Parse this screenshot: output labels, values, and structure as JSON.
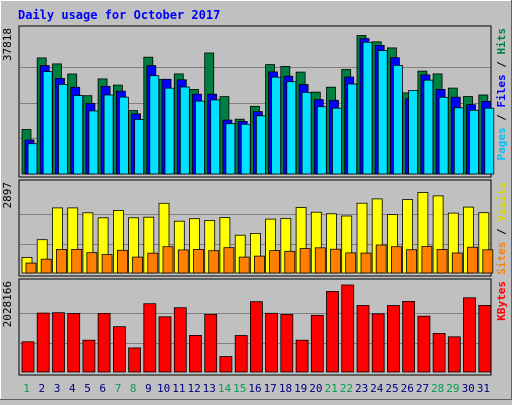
{
  "chart_data": {
    "type": "bar",
    "title": "Daily usage for October 2017",
    "categories": [
      "1",
      "2",
      "3",
      "4",
      "5",
      "6",
      "7",
      "8",
      "9",
      "10",
      "11",
      "12",
      "13",
      "14",
      "15",
      "16",
      "17",
      "18",
      "19",
      "20",
      "21",
      "22",
      "23",
      "24",
      "25",
      "26",
      "27",
      "28",
      "29",
      "30",
      "31"
    ],
    "weekend_days": [
      "1",
      "7",
      "8",
      "14",
      "15",
      "21",
      "22",
      "28",
      "29"
    ],
    "panels": [
      {
        "id": "hits",
        "ymax_label": "37818",
        "ymax": 37818,
        "labels": [
          "Pages",
          "Files",
          "Hits"
        ],
        "series": [
          {
            "name": "Hits",
            "color": "#008040",
            "values": [
              11760,
              30708,
              29120,
              26440,
              20720,
              25160,
              23520,
              16780,
              30900,
              25000,
              26460,
              22380,
              32000,
              20460,
              14500,
              17900,
              28940,
              28460,
              26940,
              21660,
              22960,
              27640,
              36620,
              34960,
              33340,
              21460,
              27200,
              26460,
              22720,
              20500,
              20900
            ]
          },
          {
            "name": "Files",
            "color": "#0000ff",
            "values": [
              9000,
              28680,
              25280,
              22920,
              18680,
              23160,
              21900,
              15900,
              28680,
              25040,
              24900,
              21100,
              21100,
              14250,
              13900,
              16500,
              27000,
              25860,
              23680,
              19680,
              19500,
              25660,
              35800,
              34000,
              30760,
              19900,
              26200,
              22380,
              20300,
              18340,
              19200
            ]
          },
          {
            "name": "Pages",
            "color": "#00e0ff",
            "values": [
              8000,
              27080,
              23700,
              20760,
              16700,
              20900,
              20340,
              14450,
              26000,
              22680,
              23000,
              19280,
              19600,
              13300,
              13140,
              15400,
              25600,
              24400,
              21580,
              17800,
              17400,
              23800,
              34840,
              32640,
              28720,
              22120,
              24800,
              20280,
              17500,
              16840,
              17400
            ]
          }
        ]
      },
      {
        "id": "visits",
        "ymax_label": "2897",
        "ymax": 2897,
        "labels": [
          "Sites",
          "Visits"
        ],
        "series": [
          {
            "name": "Visits",
            "color": "#ffff00",
            "values": [
              509,
              1096,
              2142,
              2142,
              1983,
              1816,
              2062,
              1816,
              1836,
              2294,
              1706,
              1786,
              1733,
              1823,
              1246,
              1304,
              1776,
              1794,
              2159,
              2003,
              1948,
              1876,
              2297,
              2438,
              1925,
              2418,
              2650,
              2539,
              1971,
              2170,
              1986
            ]
          },
          {
            "name": "Sites",
            "color": "#ff8000",
            "values": [
              325,
              454,
              776,
              776,
              667,
              607,
              747,
              523,
              652,
              867,
              760,
              778,
              734,
              833,
              524,
              557,
              739,
              713,
              802,
              831,
              783,
              661,
              656,
              921,
              865,
              768,
              872,
              778,
              660,
              850,
              763
            ]
          }
        ]
      },
      {
        "id": "kbytes",
        "ymax_label": "2028166",
        "ymax": 2028166,
        "labels": [
          "KBytes"
        ],
        "series": [
          {
            "name": "KBytes",
            "color": "#ff0000",
            "values": [
              695000,
              1358000,
              1366000,
              1349000,
              734000,
              1350000,
              1043000,
              556000,
              1573000,
              1272000,
              1483000,
              844000,
              1327000,
              354000,
              842000,
              1621000,
              1353000,
              1325000,
              734000,
              1307000,
              1858000,
              2006000,
              1532000,
              1341000,
              1533000,
              1628000,
              1286000,
              890000,
              811000,
              1709000,
              1535000
            ]
          }
        ]
      }
    ],
    "grid": true
  }
}
